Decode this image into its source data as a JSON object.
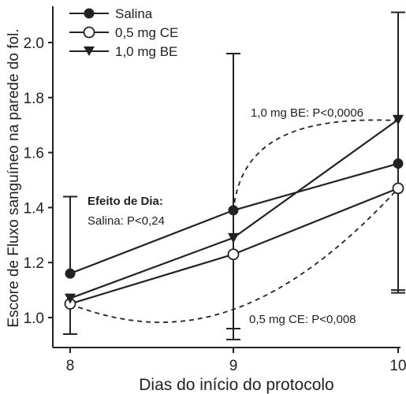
{
  "chart_data": {
    "type": "line",
    "title": "",
    "xlabel": "Dias do início do protocolo",
    "ylabel": "Escore de Fluxo sanguíneo na parede do fol.",
    "x": [
      8,
      9,
      10
    ],
    "x_ticks": [
      "8",
      "9",
      "10"
    ],
    "xlim": [
      8,
      10
    ],
    "ylim": [
      0.9,
      2.15
    ],
    "y_ticks": [
      "1.0",
      "1.2",
      "1.4",
      "1.6",
      "1.8",
      "2.0"
    ],
    "grid": false,
    "legend_position": "top-left",
    "series": [
      {
        "name": "Salina",
        "marker": "filled-circle",
        "values": [
          1.16,
          1.39,
          1.56
        ],
        "error_upper": [
          1.44,
          null,
          null
        ],
        "error_lower": [
          null,
          null,
          null
        ]
      },
      {
        "name": "0,5 mg CE",
        "marker": "open-circle",
        "values": [
          1.05,
          1.23,
          1.47
        ],
        "error_upper": [
          null,
          null,
          null
        ],
        "error_lower": [
          0.94,
          0.92,
          1.09
        ]
      },
      {
        "name": "1,0 mg BE",
        "marker": "filled-triangle-down",
        "values": [
          1.07,
          1.29,
          1.72
        ],
        "error_upper": [
          null,
          1.96,
          2.11
        ],
        "error_lower": [
          0.94,
          0.96,
          1.1
        ]
      }
    ],
    "annotations": {
      "efeito_title": "Efeito de Dia:",
      "salina_p": "Salina: P<0,24",
      "be_p": "1,0 mg BE: P<0,0006",
      "ce_p": "0,5 mg CE: P<0,008"
    }
  }
}
